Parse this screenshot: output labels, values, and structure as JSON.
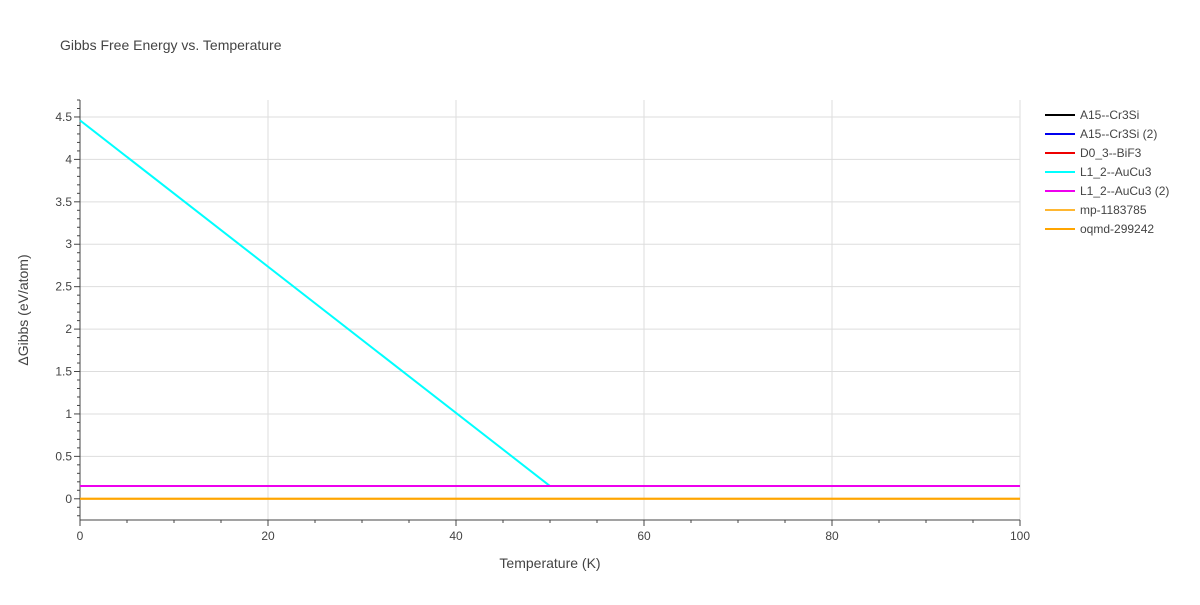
{
  "chart_data": {
    "type": "line",
    "title": "Gibbs Free Energy vs. Temperature",
    "xlabel": "Temperature (K)",
    "ylabel": "ΔGibbs (eV/atom)",
    "xlim": [
      0,
      100
    ],
    "ylim": [
      -0.25,
      4.7
    ],
    "x_ticks": [
      0,
      20,
      40,
      60,
      80,
      100
    ],
    "x_tick_labels": [
      "0",
      "20",
      "40",
      "60",
      "80",
      "100"
    ],
    "y_ticks": [
      0,
      0.5,
      1,
      1.5,
      2,
      2.5,
      3,
      3.5,
      4,
      4.5
    ],
    "y_tick_labels": [
      "0",
      "0.5",
      "1",
      "1.5",
      "2",
      "2.5",
      "3",
      "3.5",
      "4",
      "4.5"
    ],
    "grid": true,
    "legend_position": "top-right",
    "series": [
      {
        "name": "A15--Cr3Si",
        "color": "#000000",
        "x": [
          0,
          100
        ],
        "y": [
          0.15,
          0.15
        ]
      },
      {
        "name": "A15--Cr3Si (2)",
        "color": "#0000ee",
        "x": [
          0,
          100
        ],
        "y": [
          0.15,
          0.15
        ]
      },
      {
        "name": "D0_3--BiF3",
        "color": "#ee0000",
        "x": [
          0,
          100
        ],
        "y": [
          0.15,
          0.15
        ]
      },
      {
        "name": "L1_2--AuCu3",
        "color": "#00ffff",
        "x": [
          0,
          50
        ],
        "y": [
          4.46,
          0.15
        ]
      },
      {
        "name": "L1_2--AuCu3 (2)",
        "color": "#ee00ee",
        "x": [
          0,
          100
        ],
        "y": [
          0.15,
          0.15
        ]
      },
      {
        "name": "mp-1183785",
        "color": "#ffb732",
        "x": [
          0,
          100
        ],
        "y": [
          0,
          0
        ]
      },
      {
        "name": "oqmd-299242",
        "color": "#ffa500",
        "x": [
          0,
          100
        ],
        "y": [
          0,
          0
        ]
      }
    ]
  }
}
